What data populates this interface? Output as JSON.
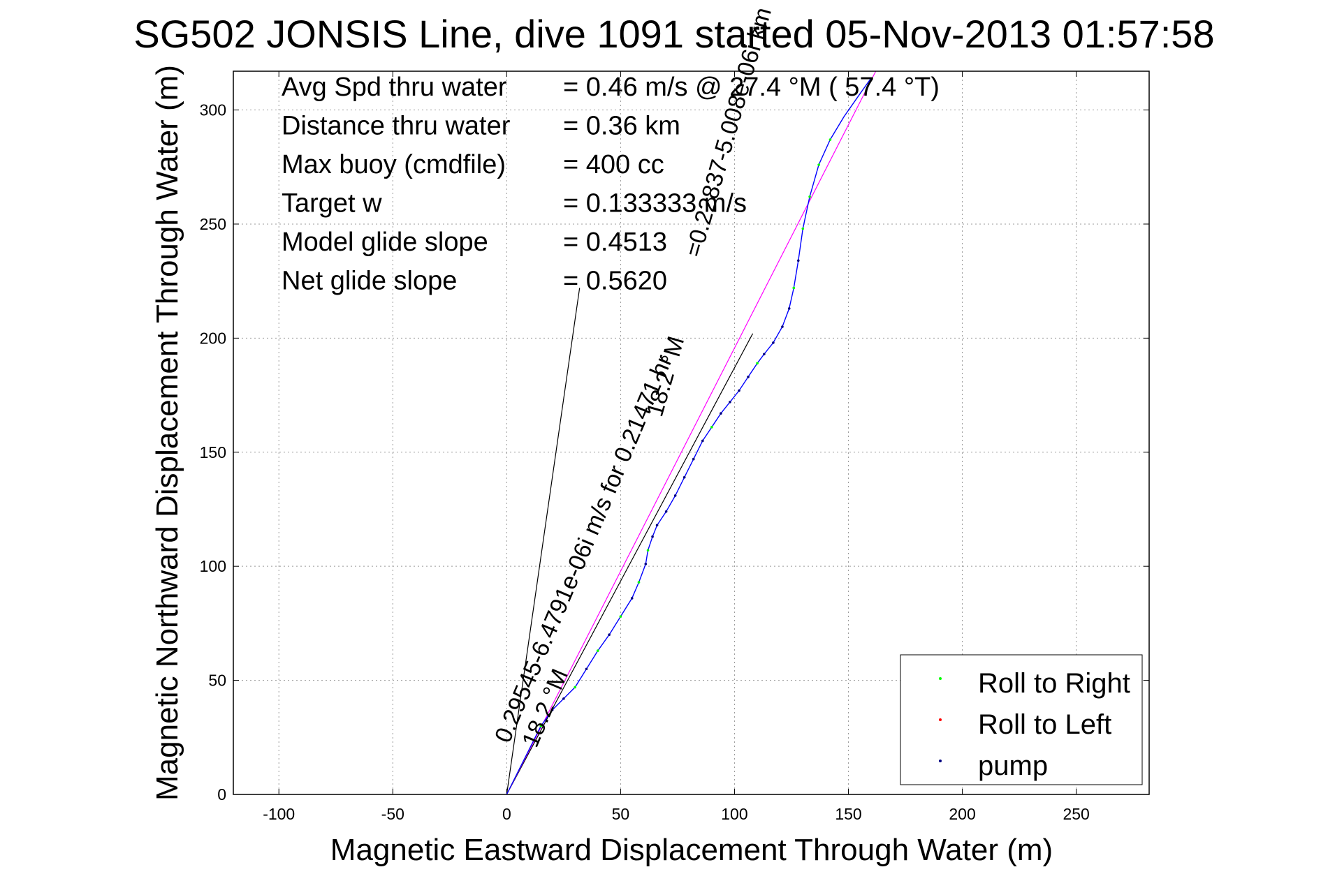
{
  "chart_data": {
    "type": "line",
    "title": "SG502 JONSIS Line, dive 1091 started 05-Nov-2013 01:57:58",
    "xlabel": "Magnetic Eastward Displacement Through Water (m)",
    "ylabel": "Magnetic Northward Displacement Through Water (m)",
    "xlim": [
      -120,
      282
    ],
    "ylim": [
      0,
      317
    ],
    "xticks": [
      -100,
      -50,
      0,
      50,
      100,
      150,
      200,
      250
    ],
    "yticks": [
      0,
      50,
      100,
      150,
      200,
      250,
      300
    ],
    "xtick_labels": [
      "-100",
      "-50",
      "0",
      "50",
      "100",
      "150",
      "200",
      "250"
    ],
    "ytick_labels": [
      "0",
      "50",
      "100",
      "150",
      "200",
      "250",
      "300"
    ],
    "grid": true,
    "legend_position": "bottom-right",
    "stats": [
      {
        "label": "Avg Spd thru water",
        "value": "=  0.46 m/s @  27.4 °M ( 57.4 °T)"
      },
      {
        "label": "Distance thru water",
        "value": "=  0.36 km"
      },
      {
        "label": "Max buoy (cmdfile)",
        "value": "= 400 cc"
      },
      {
        "label": "Target w",
        "value": "= 0.133333 m/s"
      },
      {
        "label": "Model glide slope",
        "value": "= 0.4513"
      },
      {
        "label": "Net glide slope",
        "value": "= 0.5620"
      }
    ],
    "track": {
      "color": "#0000ff",
      "points": [
        [
          0,
          0
        ],
        [
          5,
          10
        ],
        [
          10,
          20
        ],
        [
          15,
          30
        ],
        [
          20,
          37
        ],
        [
          25,
          42
        ],
        [
          30,
          47
        ],
        [
          35,
          55
        ],
        [
          40,
          63
        ],
        [
          45,
          70
        ],
        [
          50,
          78
        ],
        [
          55,
          86
        ],
        [
          58,
          93
        ],
        [
          61,
          101
        ],
        [
          62,
          107
        ],
        [
          64,
          113
        ],
        [
          66,
          118
        ],
        [
          70,
          124
        ],
        [
          74,
          131
        ],
        [
          78,
          139
        ],
        [
          82,
          147
        ],
        [
          86,
          155
        ],
        [
          90,
          161
        ],
        [
          94,
          167
        ],
        [
          98,
          172
        ],
        [
          102,
          177
        ],
        [
          106,
          183
        ],
        [
          110,
          189
        ],
        [
          113,
          193
        ],
        [
          117,
          198
        ],
        [
          121,
          205
        ],
        [
          124,
          213
        ],
        [
          126,
          222
        ],
        [
          128,
          234
        ],
        [
          130,
          248
        ],
        [
          133,
          262
        ],
        [
          137,
          276
        ],
        [
          142,
          287
        ],
        [
          148,
          297
        ],
        [
          155,
          307
        ],
        [
          160,
          314
        ]
      ]
    },
    "markers": [
      {
        "name": "Roll to Right",
        "color": "#00ff00",
        "points": [
          [
            15,
            30
          ],
          [
            30,
            47
          ],
          [
            40,
            63
          ],
          [
            50,
            78
          ],
          [
            58,
            93
          ],
          [
            62,
            107
          ],
          [
            90,
            161
          ],
          [
            110,
            189
          ],
          [
            126,
            222
          ],
          [
            130,
            248
          ],
          [
            133,
            262
          ],
          [
            137,
            276
          ],
          [
            142,
            287
          ]
        ]
      },
      {
        "name": "Roll to Left",
        "color": "#ff0000",
        "points": []
      },
      {
        "name": "pump",
        "color": "#000080",
        "points": [
          [
            20,
            37
          ],
          [
            25,
            42
          ],
          [
            35,
            55
          ],
          [
            45,
            70
          ],
          [
            55,
            86
          ],
          [
            61,
            101
          ],
          [
            64,
            113
          ],
          [
            66,
            118
          ],
          [
            70,
            124
          ],
          [
            74,
            131
          ],
          [
            78,
            139
          ],
          [
            82,
            147
          ],
          [
            86,
            155
          ],
          [
            94,
            167
          ],
          [
            98,
            172
          ],
          [
            102,
            177
          ],
          [
            106,
            183
          ],
          [
            113,
            193
          ],
          [
            117,
            198
          ],
          [
            121,
            205
          ],
          [
            124,
            213
          ],
          [
            128,
            234
          ]
        ]
      }
    ],
    "slope_lines": [
      {
        "from": [
          0,
          0
        ],
        "to": [
          32,
          222
        ]
      },
      {
        "from": [
          0,
          0
        ],
        "to": [
          108,
          202
        ]
      }
    ],
    "magenta_line": {
      "color": "#ff00ff",
      "from": [
        0,
        0
      ],
      "to": [
        162,
        317
      ]
    },
    "annotations": [
      {
        "text": "0.29545-6.4791e-06i m/s for 0.21471 hr",
        "at": [
          1,
          22
        ],
        "angle": -67
      },
      {
        "text": "18.2 °M",
        "at": [
          13,
          20
        ],
        "angle": -67
      },
      {
        "text": "18.2 °M",
        "at": [
          68,
          165
        ],
        "angle": -74
      },
      {
        "text": "=0.22837-5.008e-06i km",
        "at": [
          85,
          235
        ],
        "angle": -74
      }
    ]
  }
}
